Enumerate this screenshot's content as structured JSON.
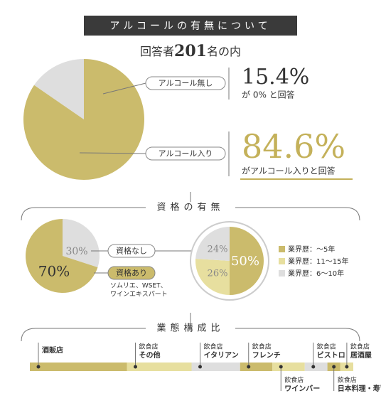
{
  "header": {
    "title": "アルコールの有無について",
    "respondents": [
      "回答者",
      "201",
      "名の内"
    ]
  },
  "sections": [
    "資格の有無",
    "業態構成比"
  ],
  "chart_data": [
    {
      "type": "pie",
      "categories": [
        "アルコール無し",
        "アルコール入り"
      ],
      "values": [
        15.4,
        84.6
      ],
      "value_labels": [
        "15.4%",
        "84.6%"
      ],
      "colors": [
        "#dedede",
        "#cbbb6c"
      ],
      "annotations": [
        "が 0% と回答",
        "がアルコール入りと回答"
      ]
    },
    {
      "type": "pie",
      "categories": [
        "資格なし",
        "資格あり"
      ],
      "values": [
        30,
        70
      ],
      "value_labels": [
        "30%",
        "70%"
      ],
      "colors": [
        "#dedede",
        "#cbbb6c"
      ],
      "annotations": [
        "ソムリエ、WSET、",
        "ワインエキスパート"
      ]
    },
    {
      "type": "pie",
      "categories": [
        "業界歴：～5年",
        "業界歴：11～15年",
        "業界歴：6～10年"
      ],
      "values": [
        50,
        26,
        24
      ],
      "value_labels": [
        "50%",
        "26%",
        "24%"
      ],
      "colors": [
        "#cbbb6c",
        "#e7df9f",
        "#dedede"
      ]
    },
    {
      "type": "stacked_bar",
      "categories": [
        "酒販店",
        "その他",
        "イタリアン",
        "フレンチ",
        "ワインバー",
        "ビストロ",
        "日本料理・寿司",
        "居酒屋"
      ],
      "category_groups": [
        null,
        "飲食店",
        "飲食店",
        "飲食店",
        "飲食店",
        "飲食店",
        "飲食店",
        "飲食店"
      ],
      "values": [
        30,
        20,
        15,
        10,
        10,
        7,
        4,
        4
      ],
      "colors": [
        "#cbbb6c",
        "#e7df9f",
        "#dedede"
      ]
    }
  ]
}
